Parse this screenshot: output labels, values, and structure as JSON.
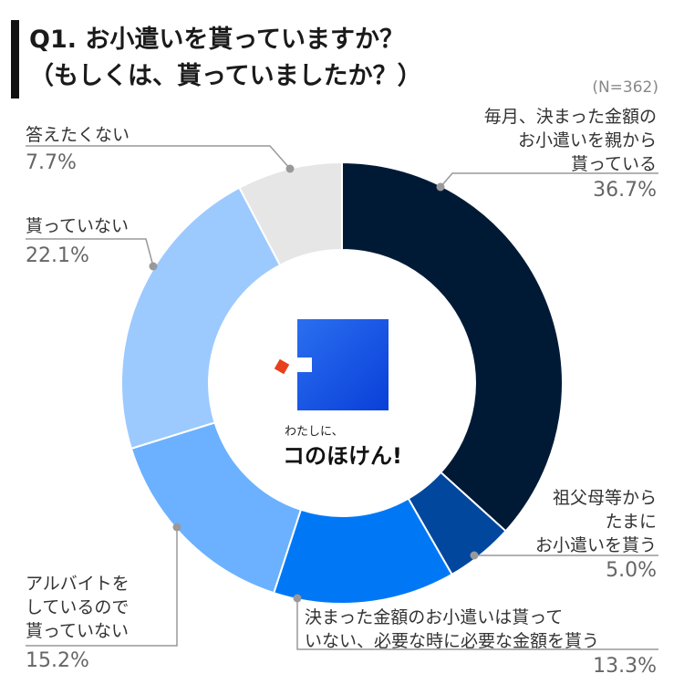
{
  "title_line1": "Q1. お小遣いを貰っていますか？",
  "title_line2": "（もしくは、貰っていましたか？）",
  "sample_size": "(N=362)",
  "center_logo": {
    "tagline_small": "わたしに、",
    "tagline_big": "コのほけん!"
  },
  "colors": {
    "monthly": "#001a36",
    "grandparents": "#00479d",
    "as_needed": "#0078f6",
    "parttime": "#6bb1ff",
    "none": "#9ccaff",
    "no_answer": "#e6e6e6"
  },
  "chart_data": {
    "type": "pie",
    "title": "Q1. お小遣いを貰っていますか？（もしくは、貰っていましたか？）",
    "n": 362,
    "unit": "%",
    "slices": [
      {
        "label_lines": [
          "毎月、決まった金額の",
          "お小遣いを親から",
          "貰っている"
        ],
        "value": 36.7,
        "display": "36.7%"
      },
      {
        "label_lines": [
          "祖父母等から",
          "たまに",
          "お小遣いを貰う"
        ],
        "value": 5.0,
        "display": "5.0%"
      },
      {
        "label_lines": [
          "決まった金額のお小遣いは貰って",
          "いない、必要な時に必要な金額を貰う"
        ],
        "value": 13.3,
        "display": "13.3%"
      },
      {
        "label_lines": [
          "アルバイトを",
          "しているので",
          "貰っていない"
        ],
        "value": 15.2,
        "display": "15.2%"
      },
      {
        "label_lines": [
          "貰っていない"
        ],
        "value": 22.1,
        "display": "22.1%"
      },
      {
        "label_lines": [
          "答えたくない"
        ],
        "value": 7.7,
        "display": "7.7%"
      }
    ]
  }
}
